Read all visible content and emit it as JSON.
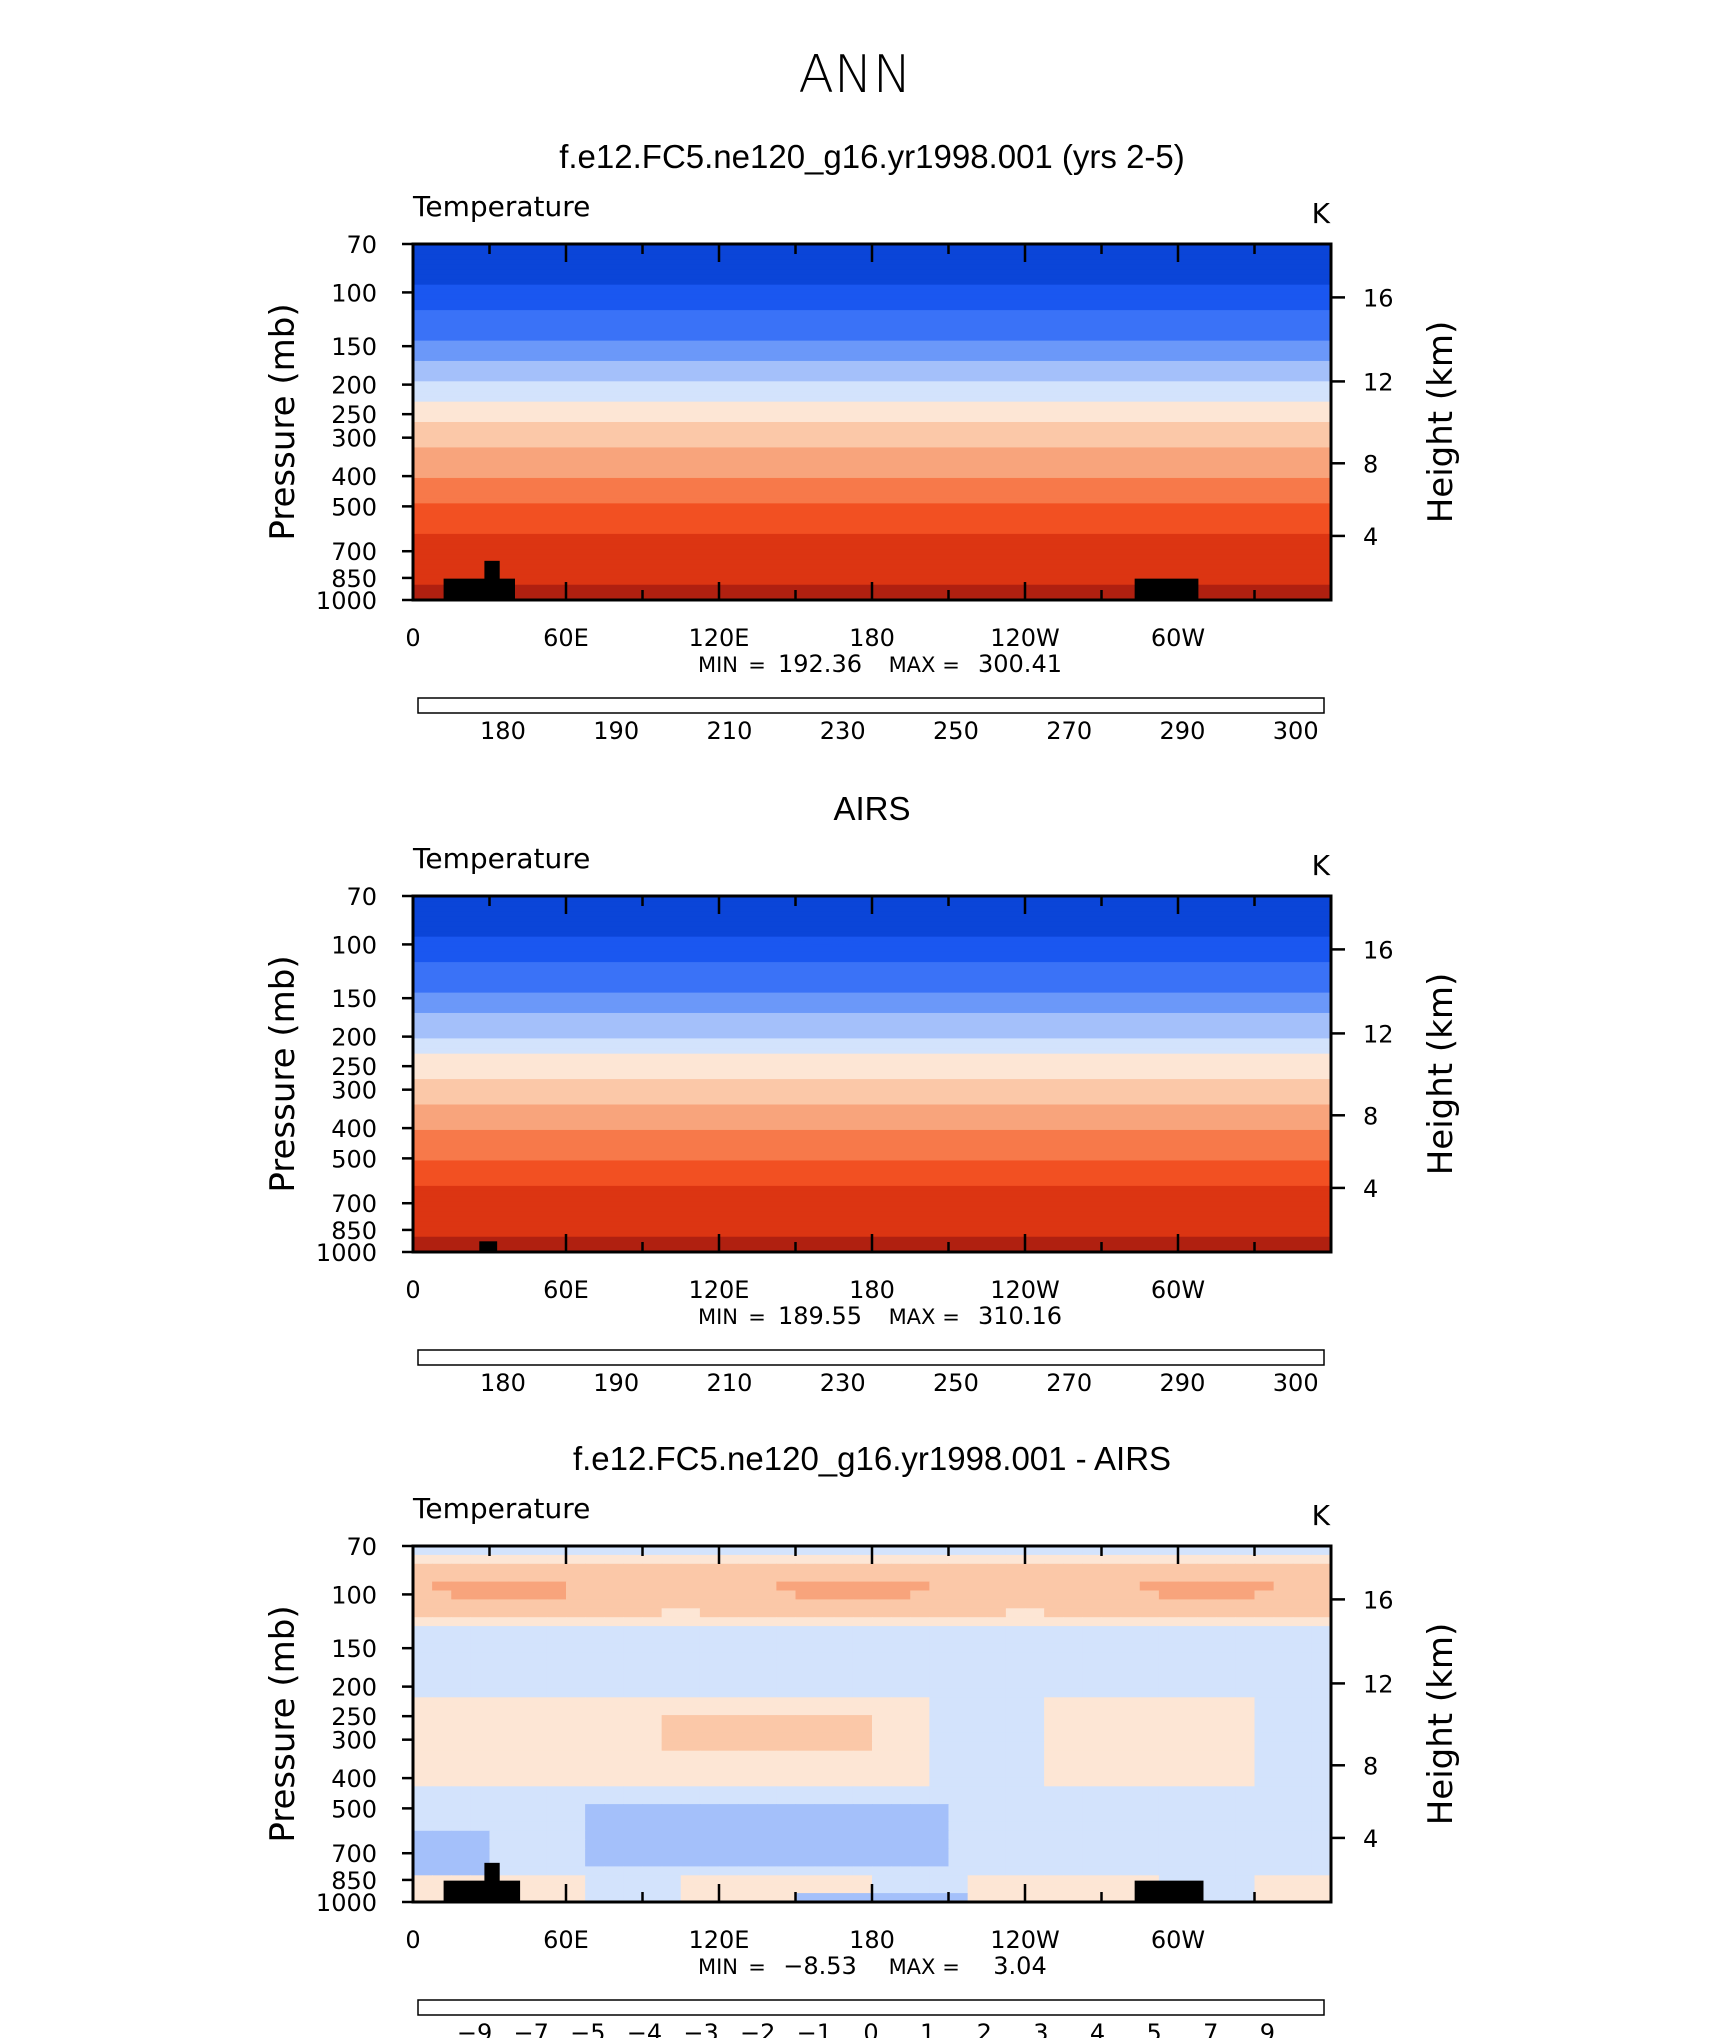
{
  "figure_title": "ANN",
  "chart_data": [
    {
      "type": "heatmap",
      "panel_title": "f.e12.FC5.ne120_g16.yr1998.001 (yrs 2-5)",
      "variable": "Temperature",
      "units": "K",
      "ylabel": "Pressure (mb)",
      "y2label": "Height (km)",
      "y_ticks": [
        "70",
        "100",
        "150",
        "200",
        "250",
        "300",
        "400",
        "500",
        "700",
        "850",
        "1000"
      ],
      "y2_ticks": [
        "16",
        "12",
        "8",
        "4"
      ],
      "x_ticks": [
        "0",
        "60E",
        "120E",
        "180",
        "120W",
        "60W"
      ],
      "stats": {
        "min_label": "MIN",
        "min": "192.36",
        "max_label": "MAX",
        "max": "300.41"
      },
      "colorbar_ticks": [
        "180",
        "190",
        "210",
        "230",
        "250",
        "270",
        "290",
        "300"
      ],
      "field": "absolute",
      "profile": [
        195,
        195,
        205,
        213,
        220,
        230,
        242,
        252,
        260,
        268,
        276,
        284,
        290,
        293,
        296
      ],
      "topography": [
        {
          "lon0": 12,
          "lon1": 40,
          "lev": 0.94
        },
        {
          "lon0": 28,
          "lon1": 34,
          "lev": 0.89
        },
        {
          "lon0": 283,
          "lon1": 308,
          "lev": 0.94
        }
      ],
      "colors": [
        "#0c1f8a",
        "#0a2fb8",
        "#0b45d8",
        "#1a57f0",
        "#3a72f7",
        "#6b98f9",
        "#a4c0fa",
        "#d3e3fc",
        "#fde6d5",
        "#fbc8a8",
        "#f8a47c",
        "#f7794a",
        "#f25022",
        "#dc3512",
        "#b02010",
        "#800808"
      ]
    },
    {
      "type": "heatmap",
      "panel_title": "AIRS",
      "variable": "Temperature",
      "units": "K",
      "ylabel": "Pressure (mb)",
      "y2label": "Height (km)",
      "y_ticks": [
        "70",
        "100",
        "150",
        "200",
        "250",
        "300",
        "400",
        "500",
        "700",
        "850",
        "1000"
      ],
      "y2_ticks": [
        "16",
        "12",
        "8",
        "4"
      ],
      "x_ticks": [
        "0",
        "60E",
        "120E",
        "180",
        "120W",
        "60W"
      ],
      "stats": {
        "min_label": "MIN",
        "min": "189.55",
        "max_label": "MAX",
        "max": "310.16"
      },
      "colorbar_ticks": [
        "180",
        "190",
        "210",
        "230",
        "250",
        "270",
        "290",
        "300"
      ],
      "field": "absolute",
      "profile": [
        195,
        195,
        205,
        213,
        220,
        230,
        241,
        251,
        259,
        267,
        275,
        283,
        290,
        293,
        297
      ],
      "topography": [
        {
          "lon0": 26,
          "lon1": 33,
          "lev": 0.97
        }
      ],
      "colors": [
        "#0c1f8a",
        "#0a2fb8",
        "#0b45d8",
        "#1a57f0",
        "#3a72f7",
        "#6b98f9",
        "#a4c0fa",
        "#d3e3fc",
        "#fde6d5",
        "#fbc8a8",
        "#f8a47c",
        "#f7794a",
        "#f25022",
        "#dc3512",
        "#b02010",
        "#800808"
      ]
    },
    {
      "type": "heatmap",
      "panel_title": "f.e12.FC5.ne120_g16.yr1998.001 - AIRS",
      "variable": "Temperature",
      "units": "K",
      "ylabel": "Pressure (mb)",
      "y2label": "Height (km)",
      "y_ticks": [
        "70",
        "100",
        "150",
        "200",
        "250",
        "300",
        "400",
        "500",
        "700",
        "850",
        "1000"
      ],
      "y2_ticks": [
        "16",
        "12",
        "8",
        "4"
      ],
      "x_ticks": [
        "0",
        "60E",
        "120E",
        "180",
        "120W",
        "60W"
      ],
      "stats": {
        "min_label": "MIN",
        "min": "−8.53",
        "max_label": "MAX",
        "max": "3.04"
      },
      "colorbar_ticks": [
        "−9",
        "−7",
        "−5",
        "−4",
        "−3",
        "−2",
        "−1",
        "0",
        "1",
        "2",
        "3",
        "4",
        "5",
        "7",
        "9"
      ],
      "field": "difference",
      "topography": [
        {
          "lon0": 12,
          "lon1": 42,
          "lev": 0.94
        },
        {
          "lon0": 28,
          "lon1": 34,
          "lev": 0.89
        },
        {
          "lon0": 283,
          "lon1": 310,
          "lev": 0.94
        }
      ],
      "colors": [
        "#0c1f8a",
        "#0a2fb8",
        "#0b45d8",
        "#1a57f0",
        "#3a72f7",
        "#6b98f9",
        "#a4c0fa",
        "#d3e3fc",
        "#fde6d5",
        "#fbc8a8",
        "#f8a47c",
        "#f7794a",
        "#f25022",
        "#dc3512",
        "#b02010",
        "#800808"
      ]
    }
  ]
}
